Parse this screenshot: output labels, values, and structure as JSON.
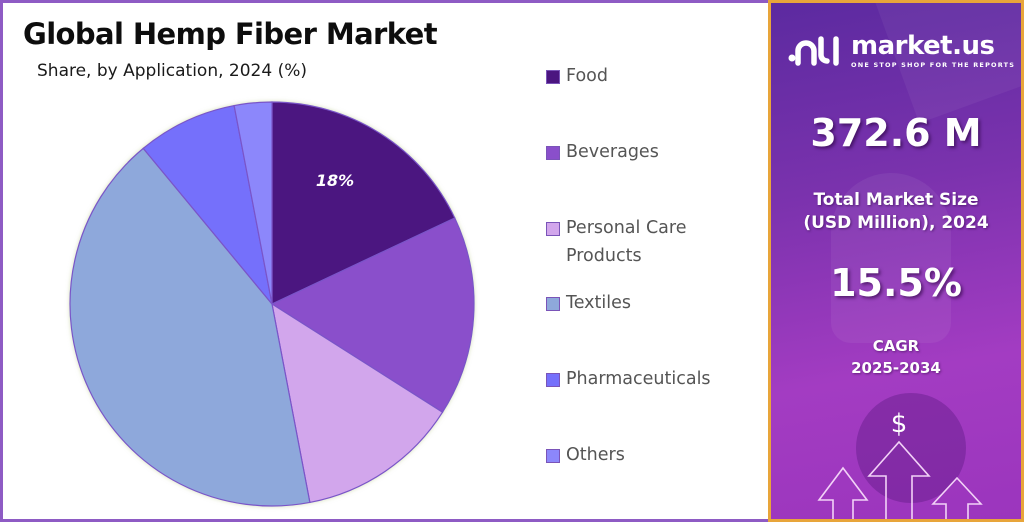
{
  "header": {
    "title": "Global Hemp Fiber Market",
    "subtitle": "Share, by Application, 2024 (%)"
  },
  "legend": {
    "items": [
      {
        "label_line1": "Food",
        "label_line2": "",
        "color": "#4b1580"
      },
      {
        "label_line1": "Beverages",
        "label_line2": "",
        "color": "#8a4fcb"
      },
      {
        "label_line1": "Personal Care",
        "label_line2": "Products",
        "color": "#d2a6ec"
      },
      {
        "label_line1": "Textiles",
        "label_line2": "",
        "color": "#8ea8db"
      },
      {
        "label_line1": "Pharmaceuticals",
        "label_line2": "",
        "color": "#7570fb"
      },
      {
        "label_line1": "Others",
        "label_line2": "",
        "color": "#8c87fb"
      }
    ]
  },
  "pie": {
    "visible_label": "18%"
  },
  "brand": {
    "name": "market.us",
    "tagline": "ONE STOP SHOP FOR THE REPORTS"
  },
  "stats": {
    "market_size_value": "372.6 M",
    "market_size_label_line1": "Total Market Size",
    "market_size_label_line2": "(USD Million), 2024",
    "cagr_value": "15.5%",
    "cagr_label_line1": "CAGR",
    "cagr_label_line2": "2025-2034",
    "dollar_symbol": "$"
  },
  "colors": {
    "left_border": "#8e5bc4",
    "right_border": "#e8a53a",
    "panel_gradient_start": "#5c2aa0",
    "panel_gradient_end": "#a33cc2"
  },
  "chart_data": {
    "type": "pie",
    "title": "Global Hemp Fiber Market",
    "subtitle": "Share, by Application, 2024 (%)",
    "categories": [
      "Food",
      "Beverages",
      "Personal Care Products",
      "Textiles",
      "Pharmaceuticals",
      "Others"
    ],
    "values": [
      18,
      16,
      13,
      42,
      8,
      3
    ],
    "colors": [
      "#4b1580",
      "#8a4fcb",
      "#d2a6ec",
      "#8ea8db",
      "#7570fb",
      "#8c87fb"
    ],
    "data_labels": {
      "Food": "18%"
    },
    "start_angle": "12 o'clock",
    "direction": "clockwise",
    "legend_position": "right",
    "unit": "%"
  }
}
